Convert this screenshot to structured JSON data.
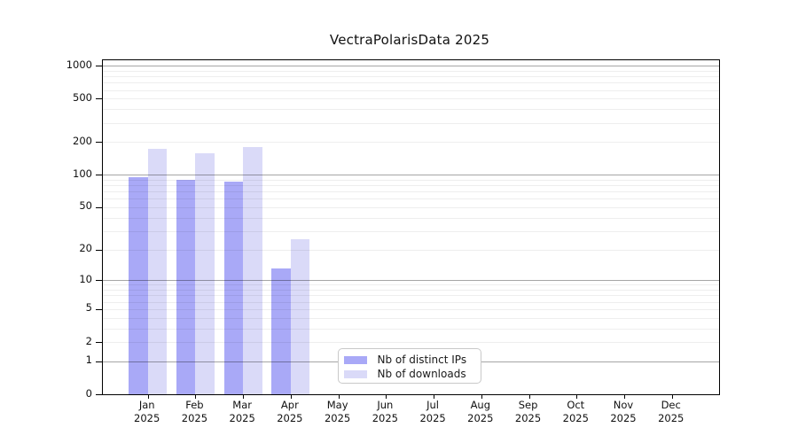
{
  "chart_data": {
    "type": "bar",
    "title": "VectraPolarisData 2025",
    "categories": [
      "Jan",
      "Feb",
      "Mar",
      "Apr",
      "May",
      "Jun",
      "Jul",
      "Aug",
      "Sep",
      "Oct",
      "Nov",
      "Dec"
    ],
    "year": "2025",
    "series": [
      {
        "name": "Nb of distinct IPs",
        "color": "#a9a9f7",
        "values": [
          95,
          90,
          87,
          13,
          0,
          0,
          0,
          0,
          0,
          0,
          0,
          0
        ]
      },
      {
        "name": "Nb of downloads",
        "color": "#dadaf8",
        "values": [
          175,
          158,
          181,
          25,
          0,
          0,
          0,
          0,
          0,
          0,
          0,
          0
        ]
      }
    ],
    "yticks": [
      0,
      1,
      2,
      5,
      10,
      20,
      50,
      100,
      200,
      500,
      1000
    ],
    "xlabel": "",
    "ylabel": "",
    "ylim": [
      0,
      1150
    ],
    "yscale": "log10(1+v)",
    "grid": true,
    "legend_position": "bottom-center-inside"
  }
}
